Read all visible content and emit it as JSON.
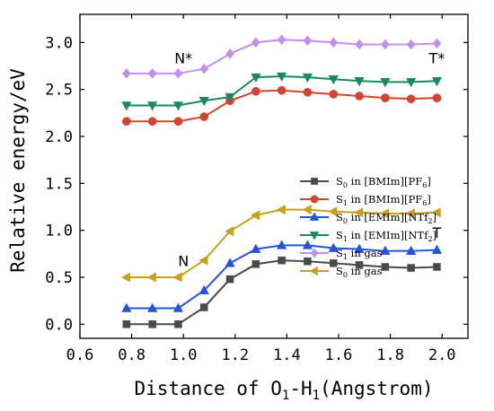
{
  "chart_data": {
    "type": "line",
    "xlabel": {
      "main": "Distance of O",
      "sub1": "1",
      "mid": "-H",
      "sub2": "1",
      "tail": "(Angstrom)"
    },
    "ylabel": "Relative energy/eV",
    "xlim": [
      0.6,
      2.1
    ],
    "ylim": [
      -0.15,
      3.3
    ],
    "xticks": [
      0.6,
      0.8,
      1.0,
      1.2,
      1.4,
      1.6,
      1.8,
      2.0
    ],
    "yticks": [
      0.0,
      0.5,
      1.0,
      1.5,
      2.0,
      2.5,
      3.0
    ],
    "xtick_labels": [
      "0.6",
      "0.8",
      "1.0",
      "1.2",
      "1.4",
      "1.6",
      "1.8",
      "2.0"
    ],
    "ytick_labels": [
      "0.0",
      "0.5",
      "1.0",
      "1.5",
      "2.0",
      "2.5",
      "3.0"
    ],
    "x": [
      0.78,
      0.88,
      0.98,
      1.08,
      1.18,
      1.28,
      1.38,
      1.48,
      1.58,
      1.68,
      1.78,
      1.88,
      1.98
    ],
    "series": [
      {
        "name": {
          "state": "S",
          "sub": "0",
          "env": " in [BMIm][PF",
          "envsub": "6",
          "tail": "]"
        },
        "color": "#4a4a4a",
        "marker": "square",
        "values": [
          0.0,
          0.0,
          0.0,
          0.18,
          0.48,
          0.64,
          0.68,
          0.67,
          0.65,
          0.63,
          0.61,
          0.6,
          0.61
        ]
      },
      {
        "name": {
          "state": "S",
          "sub": "1",
          "env": " in [BMIm][PF",
          "envsub": "6",
          "tail": "]"
        },
        "color": "#d2452f",
        "marker": "circle",
        "values": [
          2.16,
          2.16,
          2.16,
          2.21,
          2.38,
          2.48,
          2.49,
          2.47,
          2.45,
          2.43,
          2.41,
          2.4,
          2.41
        ]
      },
      {
        "name": {
          "state": "S",
          "sub": "0",
          "env": " in [EMIm][NTf",
          "envsub": "2",
          "tail": "]"
        },
        "color": "#2554d6",
        "marker": "triangle-up",
        "values": [
          0.17,
          0.17,
          0.17,
          0.36,
          0.65,
          0.8,
          0.84,
          0.84,
          0.81,
          0.8,
          0.78,
          0.78,
          0.79
        ]
      },
      {
        "name": {
          "state": "S",
          "sub": "1",
          "env": " in [EMIm][NTf",
          "envsub": "2",
          "tail": "]"
        },
        "color": "#1a8a5c",
        "marker": "triangle-down",
        "values": [
          2.33,
          2.33,
          2.33,
          2.38,
          2.42,
          2.63,
          2.64,
          2.63,
          2.61,
          2.59,
          2.58,
          2.58,
          2.59
        ]
      },
      {
        "name": {
          "state": "S",
          "sub": "1",
          "env": " in gas",
          "envsub": "",
          "tail": ""
        },
        "color": "#c48ef0",
        "marker": "diamond",
        "values": [
          2.67,
          2.67,
          2.67,
          2.72,
          2.88,
          3.0,
          3.03,
          3.02,
          3.0,
          2.98,
          2.98,
          2.98,
          2.99
        ]
      },
      {
        "name": {
          "state": "S",
          "sub": "0",
          "env": " in gas",
          "envsub": "",
          "tail": ""
        },
        "color": "#c9a01e",
        "marker": "triangle-left",
        "values": [
          0.5,
          0.5,
          0.5,
          0.68,
          0.99,
          1.16,
          1.22,
          1.22,
          1.2,
          1.19,
          1.18,
          1.18,
          1.19
        ]
      }
    ],
    "annotations": [
      {
        "text": "N*",
        "x": 1.0,
        "y": 2.78
      },
      {
        "text": "T*",
        "x": 1.98,
        "y": 2.78
      },
      {
        "text": "N",
        "x": 1.0,
        "y": 0.62
      },
      {
        "text": "T",
        "x": 1.98,
        "y": 0.92
      }
    ],
    "legend": "right-middle",
    "grid": false
  }
}
